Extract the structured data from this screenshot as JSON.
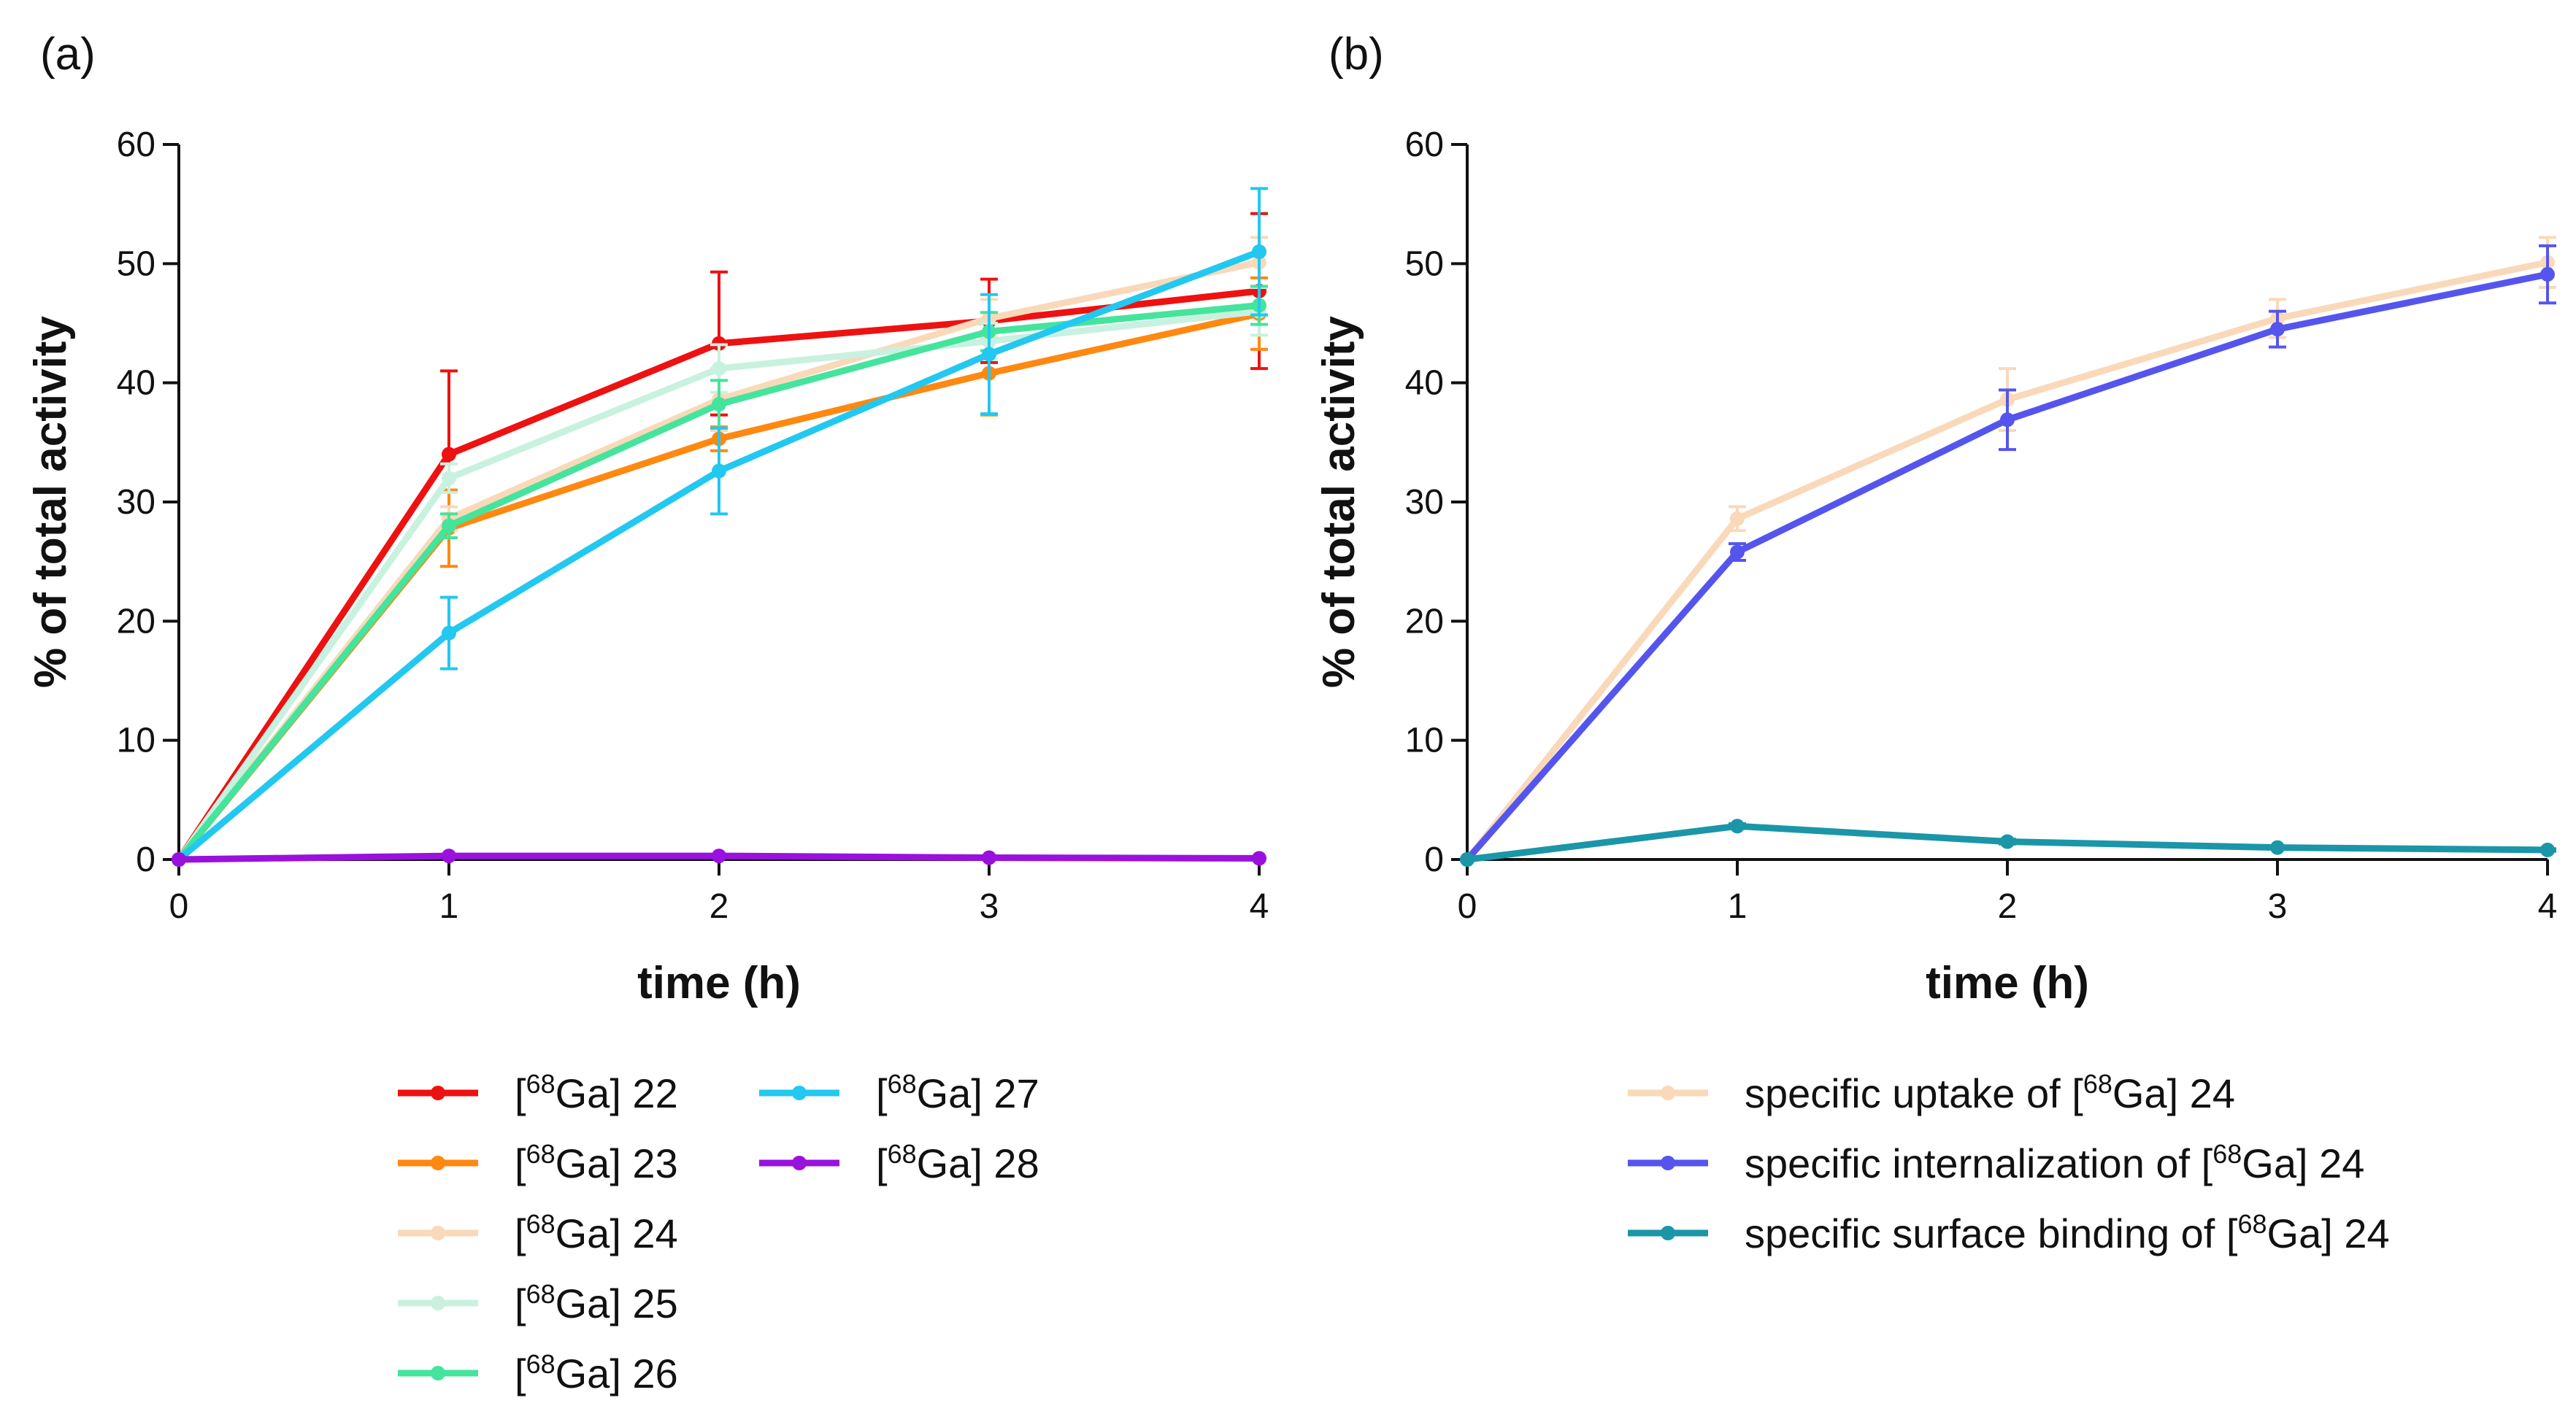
{
  "chart_data": [
    {
      "panel_label": "(a)",
      "type": "line",
      "xlabel": "time (h)",
      "ylabel": "% of total activity",
      "xlim": [
        0,
        4
      ],
      "ylim": [
        0,
        60
      ],
      "x": [
        0,
        1,
        2,
        3,
        4
      ],
      "xticks": [
        0,
        1,
        2,
        3,
        4
      ],
      "yticks": [
        0,
        10,
        20,
        30,
        40,
        50,
        60
      ],
      "legend_position": "below",
      "series": [
        {
          "name_sup": "68",
          "name_main": "Ga",
          "name_num": "22",
          "color": "#ee1111",
          "values": [
            0,
            34.0,
            43.3,
            45.2,
            47.7
          ],
          "errors": [
            0,
            7.0,
            6.0,
            3.5,
            6.5
          ]
        },
        {
          "name_sup": "68",
          "name_main": "Ga",
          "name_num": "23",
          "color": "#ff8811",
          "values": [
            0,
            27.8,
            35.3,
            40.8,
            45.8
          ],
          "errors": [
            0,
            3.2,
            1.0,
            3.5,
            3.0
          ]
        },
        {
          "name_sup": "68",
          "name_main": "Ga",
          "name_num": "24",
          "color": "#f9d9b9",
          "values": [
            0,
            28.6,
            38.6,
            45.4,
            50.1
          ],
          "errors": [
            0,
            1.0,
            2.6,
            1.6,
            2.1
          ]
        },
        {
          "name_sup": "68",
          "name_main": "Ga",
          "name_num": "25",
          "color": "#c8f1e0",
          "values": [
            0,
            32.0,
            41.2,
            43.5,
            46.0
          ],
          "errors": [
            0,
            1.2,
            2.0,
            1.5,
            2.0
          ]
        },
        {
          "name_sup": "68",
          "name_main": "Ga",
          "name_num": "26",
          "color": "#44e49c",
          "values": [
            0,
            28.0,
            38.2,
            44.3,
            46.5
          ],
          "errors": [
            0,
            1.0,
            2.0,
            1.6,
            1.6
          ]
        },
        {
          "name_sup": "68",
          "name_main": "Ga",
          "name_num": "27",
          "color": "#22c8f0",
          "values": [
            0,
            19.0,
            32.6,
            42.4,
            51.0
          ],
          "errors": [
            0,
            3.0,
            3.6,
            5.0,
            5.3
          ]
        },
        {
          "name_sup": "68",
          "name_main": "Ga",
          "name_num": "28",
          "color": "#9a11dd",
          "values": [
            0,
            0.3,
            0.3,
            0.15,
            0.1
          ],
          "errors": [
            0,
            0,
            0,
            0,
            0
          ]
        }
      ]
    },
    {
      "panel_label": "(b)",
      "type": "line",
      "xlabel": "time (h)",
      "ylabel": "% of total activity",
      "xlim": [
        0,
        4
      ],
      "ylim": [
        0,
        60
      ],
      "x": [
        0,
        1,
        2,
        3,
        4
      ],
      "xticks": [
        0,
        1,
        2,
        3,
        4
      ],
      "yticks": [
        0,
        10,
        20,
        30,
        40,
        50,
        60
      ],
      "legend_position": "below",
      "series": [
        {
          "name_prefix": "specific uptake of [",
          "name_sup": "68",
          "name_main": "Ga",
          "name_num": "24",
          "color": "#f9d9b9",
          "values": [
            0,
            28.6,
            38.6,
            45.4,
            50.1
          ],
          "errors": [
            0,
            1.0,
            2.6,
            1.6,
            2.1
          ]
        },
        {
          "name_prefix": "specific internalization of [",
          "name_sup": "68",
          "name_main": "Ga",
          "name_num": "24",
          "color": "#5555ee",
          "values": [
            0,
            25.8,
            36.9,
            44.5,
            49.1
          ],
          "errors": [
            0,
            0.7,
            2.5,
            1.5,
            2.4
          ]
        },
        {
          "name_prefix": "specific surface binding of [",
          "name_sup": "68",
          "name_main": "Ga",
          "name_num": "24",
          "color": "#1a96a8",
          "values": [
            0,
            2.8,
            1.5,
            1.0,
            0.8
          ],
          "errors": [
            0,
            0.2,
            0.2,
            0.1,
            0.1
          ]
        }
      ]
    }
  ]
}
